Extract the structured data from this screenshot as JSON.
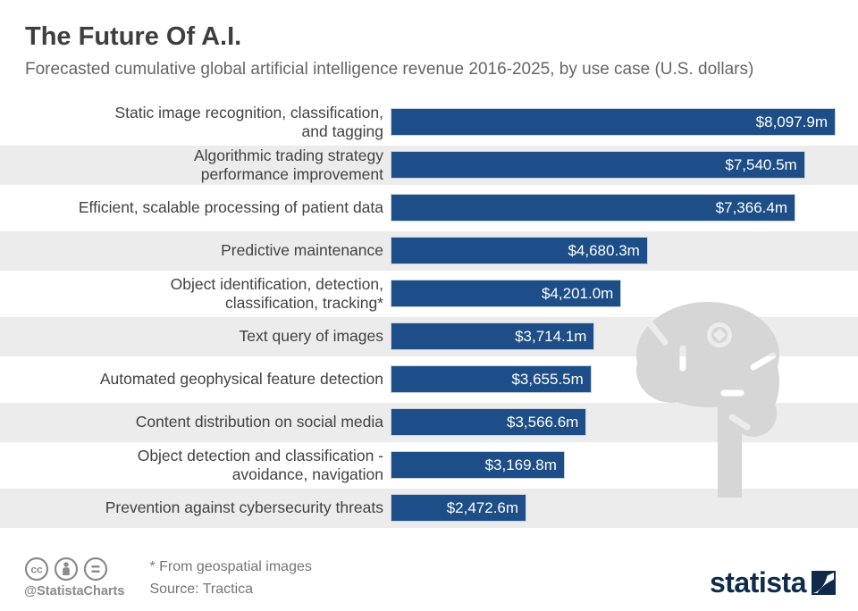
{
  "header": {
    "title": "The Future Of A.I.",
    "subtitle": "Forecasted cumulative global artificial intelligence revenue 2016-2025, by use case (U.S. dollars)"
  },
  "chart_data": {
    "type": "bar",
    "orientation": "horizontal",
    "title": "The Future Of A.I.",
    "subtitle": "Forecasted cumulative global artificial intelligence revenue 2016-2025, by use case (U.S. dollars)",
    "unit": "million U.S. dollars",
    "xlim": [
      0,
      8097.9
    ],
    "grid": false,
    "legend": false,
    "bar_color": "#1d4e87",
    "alt_row_color": "#ececec",
    "categories": [
      "Static image recognition, classification,\nand tagging",
      "Algorithmic trading strategy\nperformance improvement",
      "Efficient, scalable processing of patient data",
      "Predictive maintenance",
      "Object identification, detection,\nclassification, tracking*",
      "Text query of images",
      "Automated geophysical feature detection",
      "Content distribution on social media",
      "Object detection and classification -\navoidance, navigation",
      "Prevention against cybersecurity threats"
    ],
    "values": [
      8097.9,
      7540.5,
      7366.4,
      4680.3,
      4201.0,
      3714.1,
      3655.5,
      3566.6,
      3169.8,
      2472.6
    ],
    "value_labels": [
      "$8,097.9m",
      "$7,540.5m",
      "$7,366.4m",
      "$4,680.3m",
      "$4,201.0m",
      "$3,714.1m",
      "$3,655.5m",
      "$3,566.6m",
      "$3,169.8m",
      "$2,472.6m"
    ]
  },
  "watermark": {
    "name": "ai-brain-icon",
    "color": "#d6d6d6"
  },
  "footer": {
    "license_icons": [
      "cc-icon",
      "attribution-icon",
      "equals-icon"
    ],
    "credit": "@StatistaCharts",
    "footnote": "* From geospatial images",
    "source": "Source: Tractica",
    "brand": "statista"
  }
}
